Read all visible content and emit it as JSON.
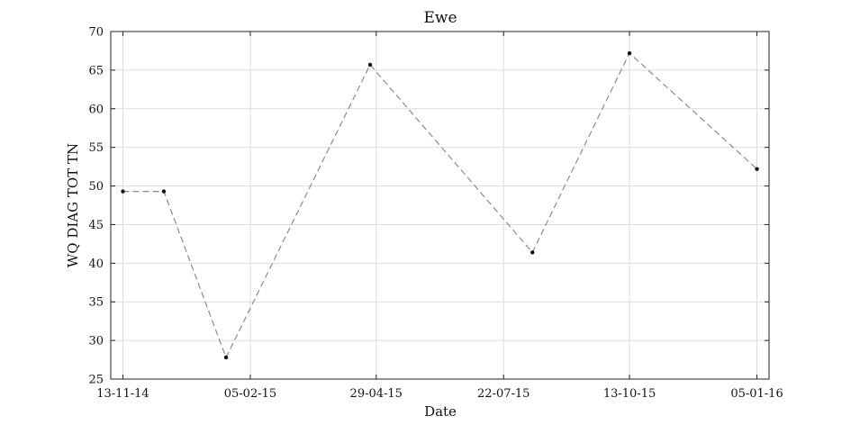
{
  "chart_data": {
    "type": "line",
    "title": "Ewe",
    "xlabel": "Date",
    "ylabel": "WQ DIAG TOT TN",
    "x_tick_labels": [
      "13-11-14",
      "05-02-15",
      "29-04-15",
      "22-07-15",
      "13-10-15",
      "05-01-16"
    ],
    "x_ticks": [
      "2014-11-13",
      "2015-02-05",
      "2015-04-29",
      "2015-07-22",
      "2015-10-13",
      "2016-01-05"
    ],
    "xlim": [
      "2014-11-05",
      "2016-01-13"
    ],
    "ylim": [
      25,
      70
    ],
    "y_ticks": [
      25,
      30,
      35,
      40,
      45,
      50,
      55,
      60,
      65,
      70
    ],
    "grid": true,
    "series": [
      {
        "x": [
          "2014-11-13",
          "2014-12-10",
          "2015-01-20",
          "2015-04-25",
          "2015-08-10",
          "2015-10-13",
          "2016-01-05"
        ],
        "values": [
          49.3,
          49.3,
          27.8,
          65.7,
          41.4,
          67.2,
          52.2
        ]
      }
    ],
    "colors": {
      "line": "#8c8c8c",
      "marker": "#111111",
      "grid": "#dcdcdc"
    }
  }
}
